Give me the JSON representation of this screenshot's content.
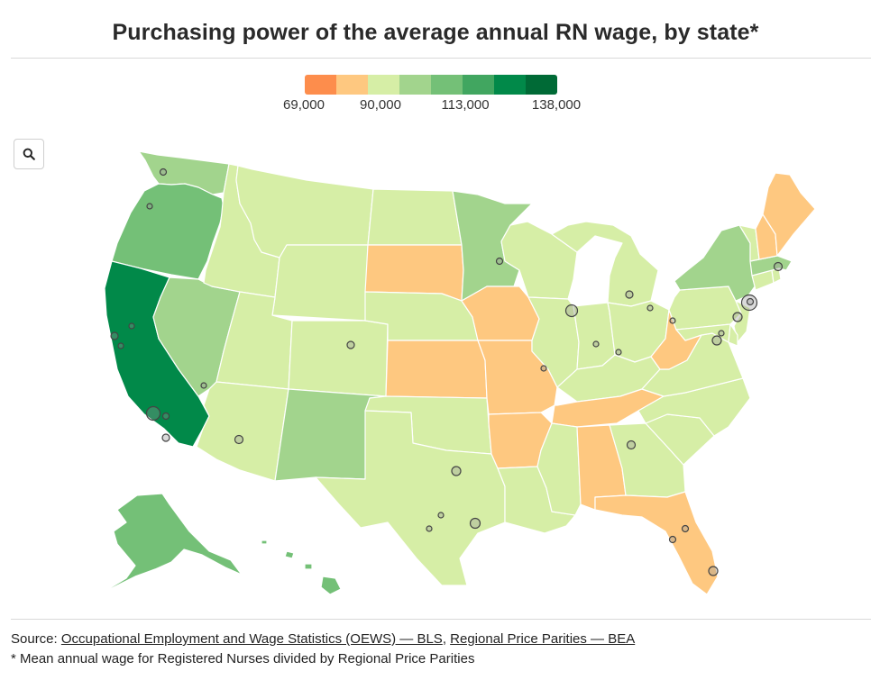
{
  "title": "Purchasing power of the average annual RN wage, by state*",
  "legend": {
    "colors": [
      "#fd8d4c",
      "#fec880",
      "#d6eea6",
      "#a2d48d",
      "#74c077",
      "#41a660",
      "#018949",
      "#006a36"
    ],
    "min": 69000,
    "max": 138000,
    "labels": [
      "69,000",
      "90,000",
      "113,000",
      "138,000"
    ]
  },
  "zoom": {
    "icon": "search-icon"
  },
  "states": [
    {
      "id": "WA",
      "color": "#a2d48d"
    },
    {
      "id": "OR",
      "color": "#74c077"
    },
    {
      "id": "CA",
      "color": "#018949"
    },
    {
      "id": "NV",
      "color": "#a2d48d"
    },
    {
      "id": "ID",
      "color": "#d6eea6"
    },
    {
      "id": "MT",
      "color": "#d6eea6"
    },
    {
      "id": "WY",
      "color": "#d6eea6"
    },
    {
      "id": "UT",
      "color": "#d6eea6"
    },
    {
      "id": "AZ",
      "color": "#d6eea6"
    },
    {
      "id": "CO",
      "color": "#d6eea6"
    },
    {
      "id": "NM",
      "color": "#a2d48d"
    },
    {
      "id": "ND",
      "color": "#d6eea6"
    },
    {
      "id": "SD",
      "color": "#fec880"
    },
    {
      "id": "NE",
      "color": "#d6eea6"
    },
    {
      "id": "KS",
      "color": "#fec880"
    },
    {
      "id": "OK",
      "color": "#d6eea6"
    },
    {
      "id": "TX",
      "color": "#d6eea6"
    },
    {
      "id": "MN",
      "color": "#a2d48d"
    },
    {
      "id": "IA",
      "color": "#fec880"
    },
    {
      "id": "MO",
      "color": "#fec880"
    },
    {
      "id": "AR",
      "color": "#fec880"
    },
    {
      "id": "LA",
      "color": "#d6eea6"
    },
    {
      "id": "WI",
      "color": "#d6eea6"
    },
    {
      "id": "IL",
      "color": "#d6eea6"
    },
    {
      "id": "MI",
      "color": "#d6eea6"
    },
    {
      "id": "IN",
      "color": "#d6eea6"
    },
    {
      "id": "OH",
      "color": "#d6eea6"
    },
    {
      "id": "KY",
      "color": "#d6eea6"
    },
    {
      "id": "TN",
      "color": "#fec880"
    },
    {
      "id": "MS",
      "color": "#d6eea6"
    },
    {
      "id": "AL",
      "color": "#fec880"
    },
    {
      "id": "GA",
      "color": "#d6eea6"
    },
    {
      "id": "FL",
      "color": "#fec880"
    },
    {
      "id": "SC",
      "color": "#d6eea6"
    },
    {
      "id": "NC",
      "color": "#d6eea6"
    },
    {
      "id": "VA",
      "color": "#d6eea6"
    },
    {
      "id": "WV",
      "color": "#fec880"
    },
    {
      "id": "PA",
      "color": "#d6eea6"
    },
    {
      "id": "NY",
      "color": "#a2d48d"
    },
    {
      "id": "NJ",
      "color": "#d6eea6"
    },
    {
      "id": "MD",
      "color": "#d6eea6"
    },
    {
      "id": "DE",
      "color": "#d6eea6"
    },
    {
      "id": "CT",
      "color": "#d6eea6"
    },
    {
      "id": "RI",
      "color": "#d6eea6"
    },
    {
      "id": "MA",
      "color": "#a2d48d"
    },
    {
      "id": "VT",
      "color": "#d6eea6"
    },
    {
      "id": "NH",
      "color": "#fec880"
    },
    {
      "id": "ME",
      "color": "#fec880"
    },
    {
      "id": "AK",
      "color": "#74c077"
    },
    {
      "id": "HI",
      "color": "#74c077"
    }
  ],
  "footer": {
    "source_prefix": "Source: ",
    "link1": "Occupational Employment and Wage Statistics (OEWS) — BLS",
    "separator": ", ",
    "link2": "Regional Price Parities — BEA",
    "note": "* Mean annual wage for Registered Nurses divided by Regional Price Parities"
  }
}
